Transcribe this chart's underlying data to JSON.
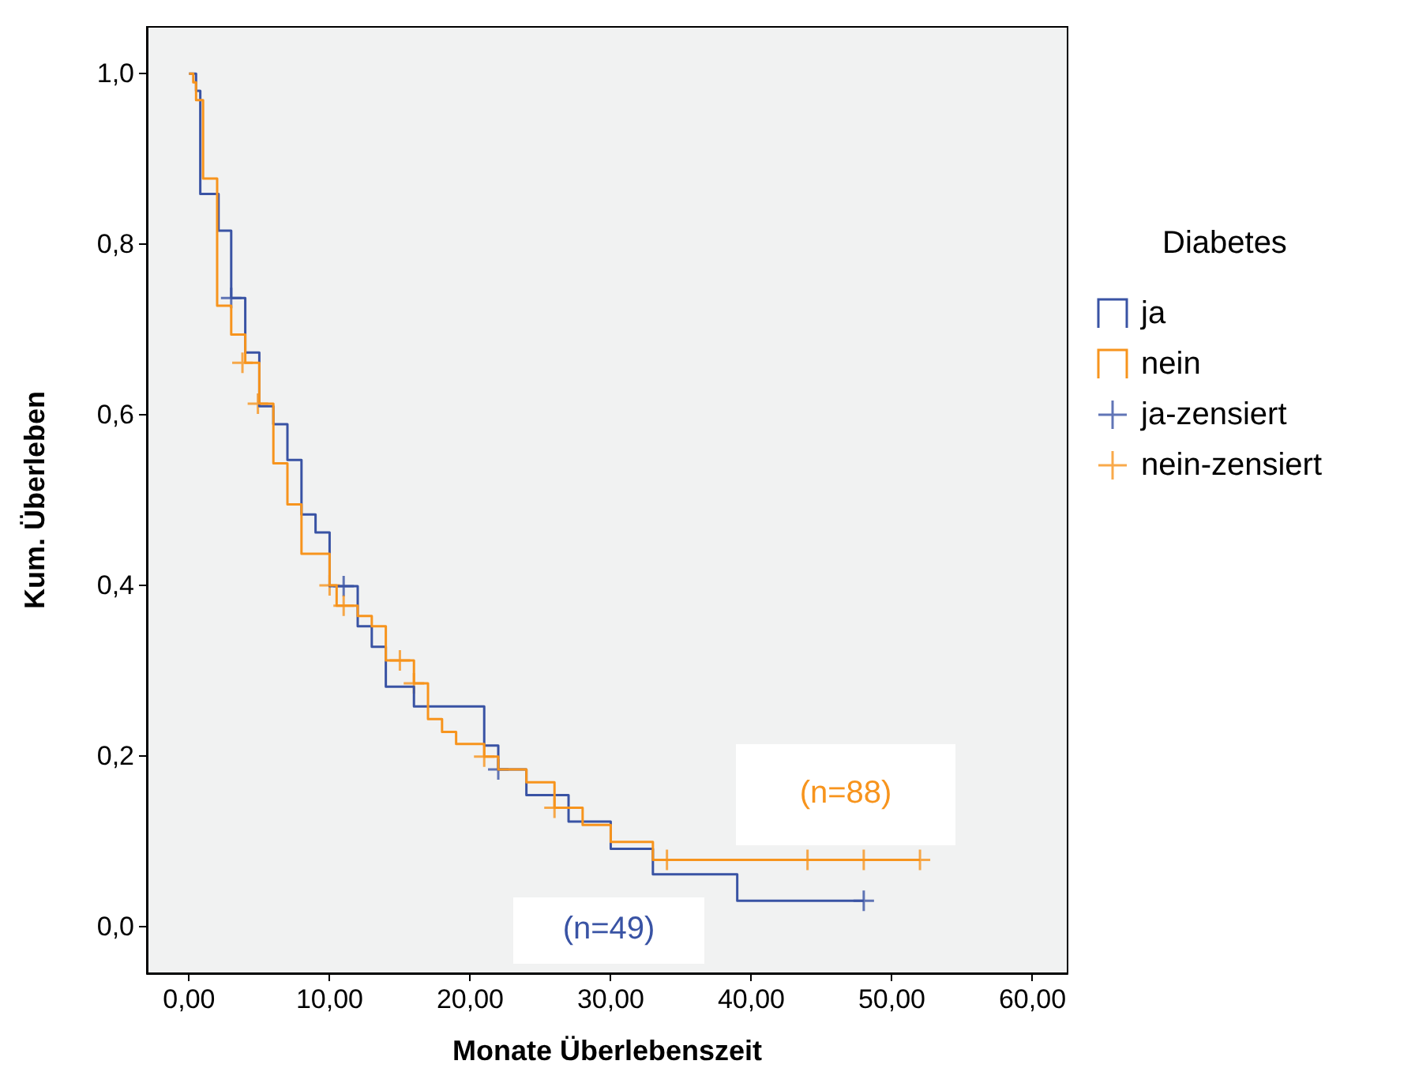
{
  "chart_data": {
    "type": "step",
    "xlabel": "Monate Überlebenszeit",
    "ylabel": "Kum. Überleben",
    "legend_title": "Diabetes",
    "legend": "right",
    "grid": false,
    "xlim": [
      -3,
      62.5
    ],
    "ylim": [
      -0.055,
      1.055
    ],
    "xticks": [
      {
        "value": 0,
        "label": "0,00"
      },
      {
        "value": 10,
        "label": "10,00"
      },
      {
        "value": 20,
        "label": "20,00"
      },
      {
        "value": 30,
        "label": "30,00"
      },
      {
        "value": 40,
        "label": "40,00"
      },
      {
        "value": 50,
        "label": "50,00"
      },
      {
        "value": 60,
        "label": "60,00"
      }
    ],
    "yticks": [
      {
        "value": 0,
        "label": "0,0"
      },
      {
        "value": 0.2,
        "label": "0,2"
      },
      {
        "value": 0.4,
        "label": "0,4"
      },
      {
        "value": 0.6,
        "label": "0,6"
      },
      {
        "value": 0.8,
        "label": "0,8"
      },
      {
        "value": 1,
        "label": "1,0"
      }
    ],
    "series": [
      {
        "name": "ja",
        "color": "#3953a4",
        "x": [
          0,
          0.5,
          0.8,
          2.1,
          3.0,
          4.0,
          5.0,
          6.0,
          7.0,
          8.0,
          9.0,
          10.0,
          12.0,
          13.0,
          14.0,
          16.0,
          21.0,
          22.0,
          24.0,
          27.0,
          30.0,
          33.0,
          39.0,
          48.0
        ],
        "values": [
          1.0,
          0.98,
          0.859,
          0.816,
          0.737,
          0.673,
          0.61,
          0.589,
          0.547,
          0.483,
          0.462,
          0.399,
          0.352,
          0.328,
          0.281,
          0.258,
          0.212,
          0.184,
          0.154,
          0.123,
          0.091,
          0.061,
          0.03,
          0.03
        ]
      },
      {
        "name": "nein",
        "color": "#f7941d",
        "x": [
          0,
          0.3,
          0.5,
          1.0,
          2.0,
          3.0,
          4.0,
          5.0,
          6.0,
          7.0,
          8.0,
          10.0,
          10.5,
          12.0,
          13.0,
          14.0,
          16.0,
          17.0,
          18.0,
          19.0,
          21.0,
          22.0,
          24.0,
          26.0,
          28.0,
          30.0,
          33.0,
          52.0
        ],
        "values": [
          1.0,
          0.99,
          0.969,
          0.877,
          0.728,
          0.694,
          0.661,
          0.613,
          0.543,
          0.495,
          0.437,
          0.4,
          0.376,
          0.364,
          0.352,
          0.312,
          0.285,
          0.243,
          0.228,
          0.214,
          0.199,
          0.184,
          0.169,
          0.139,
          0.119,
          0.099,
          0.078,
          0.078
        ]
      },
      {
        "name": "ja-zensiert",
        "type": "scatter",
        "marker": "cross",
        "color": "#3953a4",
        "x": [
          3.0,
          11.0,
          22.0,
          48.0
        ],
        "values": [
          0.737,
          0.399,
          0.184,
          0.03
        ]
      },
      {
        "name": "nein-zensiert",
        "type": "scatter",
        "marker": "cross",
        "color": "#f7941d",
        "x": [
          3.8,
          4.9,
          10.0,
          11.0,
          15.0,
          16.0,
          21.0,
          26.0,
          34.0,
          44.0,
          48.0,
          52.0
        ],
        "values": [
          0.661,
          0.613,
          0.4,
          0.376,
          0.312,
          0.285,
          0.199,
          0.139,
          0.078,
          0.078,
          0.078,
          0.078
        ]
      }
    ],
    "annotations": [
      "(n=88)",
      "(n=49)"
    ]
  }
}
